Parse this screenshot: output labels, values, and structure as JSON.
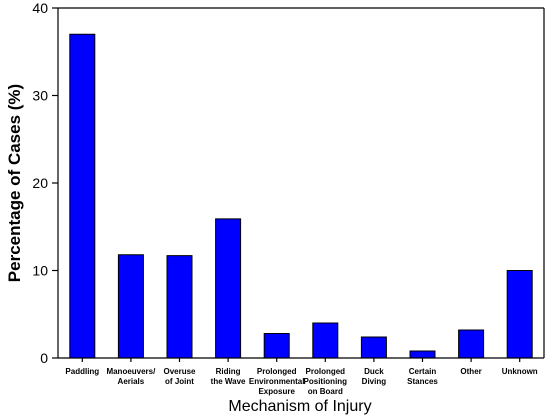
{
  "chart_data": {
    "type": "bar",
    "categories": [
      [
        "Paddling"
      ],
      [
        "Manoeuvers/",
        "Aerials"
      ],
      [
        "Overuse",
        "of Joint"
      ],
      [
        "Riding",
        "the Wave"
      ],
      [
        "Prolonged",
        "Environmental",
        "Exposure"
      ],
      [
        "Prolonged",
        "Positioning",
        "on Board"
      ],
      [
        "Duck",
        "Diving"
      ],
      [
        "Certain",
        "Stances"
      ],
      [
        "Other"
      ],
      [
        "Unknown"
      ]
    ],
    "values": [
      37,
      11.8,
      11.7,
      15.9,
      2.8,
      4.0,
      2.4,
      0.8,
      3.2,
      10.0
    ],
    "xlabel": "Mechanism of Injury",
    "ylabel": "Percentage of Cases (%)",
    "ylim": [
      0,
      40
    ],
    "yticks": [
      0,
      10,
      20,
      30,
      40
    ],
    "bar_color": "#0000FF",
    "grid": false,
    "legend": "none"
  }
}
